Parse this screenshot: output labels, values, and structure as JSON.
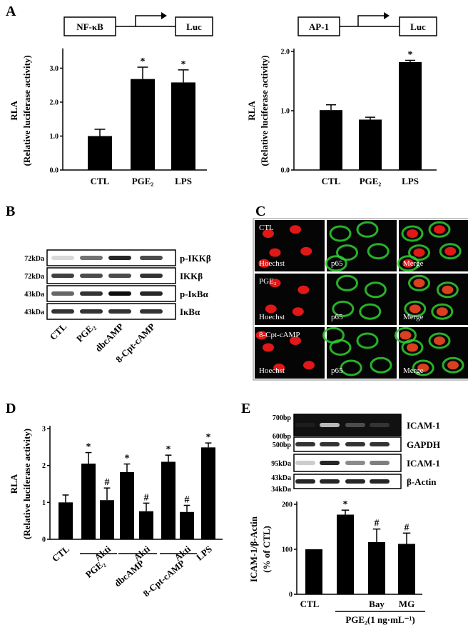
{
  "panels": {
    "A": "A",
    "B": "B",
    "C": "C",
    "D": "D",
    "E": "E"
  },
  "constructs": {
    "nfkb": {
      "promoter": "NF-κB",
      "reporter": "Luc"
    },
    "ap1": {
      "promoter": "AP-1",
      "reporter": "Luc"
    }
  },
  "blotB": {
    "rows": [
      {
        "marker": "72kDa",
        "label": "p-IKKβ"
      },
      {
        "marker": "72kDa",
        "label": "IKKβ"
      },
      {
        "marker": "43kDa",
        "label": "p-IκBα"
      },
      {
        "marker": "43kDa",
        "label": "IκBα"
      }
    ],
    "lanes": [
      "CTL",
      "PGE₂",
      "dbcAMP",
      "8-Cpt-cAMP"
    ]
  },
  "microscopy": {
    "rows": [
      "CTL",
      "PGE₂",
      "8-Cpt-cAMP"
    ],
    "channels": [
      "Hoechst",
      "p65",
      "Merge"
    ]
  },
  "gelE": {
    "rows": [
      {
        "markers": [
          "700bp",
          "600bp"
        ],
        "label": "ICAM-1"
      },
      {
        "markers": [
          "500bp"
        ],
        "label": "GAPDH"
      },
      {
        "markers": [
          "95kDa"
        ],
        "label": "ICAM-1"
      },
      {
        "markers": [
          "43kDa",
          "34kDa"
        ],
        "label": "β-Actin"
      }
    ]
  },
  "chart_data": [
    {
      "id": "A_nfkb",
      "type": "bar",
      "categories": [
        "CTL",
        "PGE₂",
        "LPS"
      ],
      "values": [
        1.0,
        2.68,
        2.58
      ],
      "errors": [
        0.2,
        0.35,
        0.37
      ],
      "marks": [
        "",
        "*",
        "*"
      ],
      "ylabel": "RLA",
      "ylabel2": "(Relative luciferase activity)",
      "ylim": [
        0,
        3.5
      ],
      "yticks": [
        "0.0",
        "1.0",
        "2.0",
        "3.0"
      ]
    },
    {
      "id": "A_ap1",
      "type": "bar",
      "categories": [
        "CTL",
        "PGE₂",
        "LPS"
      ],
      "values": [
        1.01,
        0.85,
        1.82
      ],
      "errors": [
        0.09,
        0.04,
        0.03
      ],
      "marks": [
        "",
        "",
        "*"
      ],
      "ylabel": "RLA",
      "ylabel2": "(Relative luciferase activity)",
      "ylim": [
        0,
        2.0
      ],
      "yticks": [
        "0.0",
        "1.0",
        "2.0"
      ]
    },
    {
      "id": "D",
      "type": "bar",
      "values": [
        1.0,
        2.05,
        1.06,
        1.82,
        0.76,
        2.1,
        0.74,
        2.49
      ],
      "errors": [
        0.2,
        0.3,
        0.33,
        0.22,
        0.22,
        0.18,
        0.18,
        0.12
      ],
      "marks": [
        "",
        "*",
        "#",
        "*",
        "#",
        "*",
        "#",
        "*"
      ],
      "lane_labels": [
        "CTL",
        "",
        "Akti",
        "",
        "Akti",
        "",
        "Akti",
        "LPS"
      ],
      "group_labels": [
        "PGE₂",
        "dbcAMP",
        "8-Cpt-cAMP"
      ],
      "ylabel": "RLA",
      "ylabel2": "(Relative luciferase activity)",
      "ylim": [
        0,
        3.0
      ],
      "yticks": [
        "0",
        "1",
        "2",
        "3"
      ]
    },
    {
      "id": "E",
      "type": "bar",
      "values": [
        100,
        177,
        116,
        112
      ],
      "errors": [
        0,
        10,
        29,
        24
      ],
      "marks": [
        "",
        "*",
        "#",
        "#"
      ],
      "lane_labels": [
        "CTL",
        "",
        "Bay",
        "MG"
      ],
      "group_label": "PGE₂(1 ng·mL⁻¹)",
      "ylabel": "ICAM-1/β-Actin",
      "ylabel2": "(% of CTL)",
      "ylim": [
        0,
        200
      ],
      "yticks": [
        "0",
        "100",
        "200"
      ]
    }
  ]
}
